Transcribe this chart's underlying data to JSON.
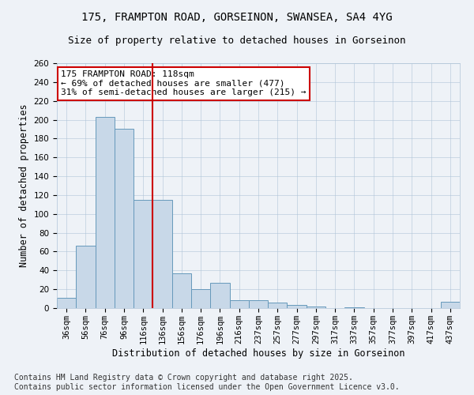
{
  "title_line1": "175, FRAMPTON ROAD, GORSEINON, SWANSEA, SA4 4YG",
  "title_line2": "Size of property relative to detached houses in Gorseinon",
  "xlabel": "Distribution of detached houses by size in Gorseinon",
  "ylabel": "Number of detached properties",
  "categories": [
    "36sqm",
    "56sqm",
    "76sqm",
    "96sqm",
    "116sqm",
    "136sqm",
    "156sqm",
    "176sqm",
    "196sqm",
    "216sqm",
    "237sqm",
    "257sqm",
    "277sqm",
    "297sqm",
    "317sqm",
    "337sqm",
    "357sqm",
    "377sqm",
    "397sqm",
    "417sqm",
    "437sqm"
  ],
  "values": [
    11,
    66,
    203,
    190,
    115,
    115,
    37,
    20,
    27,
    8,
    8,
    6,
    3,
    2,
    0,
    1,
    0,
    0,
    0,
    0,
    7
  ],
  "bar_color": "#c8d8e8",
  "bar_edge_color": "#6699bb",
  "property_line_x": 4.5,
  "property_line_color": "#cc0000",
  "annotation_text": "175 FRAMPTON ROAD: 118sqm\n← 69% of detached houses are smaller (477)\n31% of semi-detached houses are larger (215) →",
  "annotation_box_color": "#ffffff",
  "annotation_box_edge_color": "#cc0000",
  "ylim": [
    0,
    260
  ],
  "yticks": [
    0,
    20,
    40,
    60,
    80,
    100,
    120,
    140,
    160,
    180,
    200,
    220,
    240,
    260
  ],
  "background_color": "#eef2f7",
  "grid_color": "#b0c4d8",
  "footer_line1": "Contains HM Land Registry data © Crown copyright and database right 2025.",
  "footer_line2": "Contains public sector information licensed under the Open Government Licence v3.0.",
  "title_fontsize": 10,
  "subtitle_fontsize": 9,
  "axis_label_fontsize": 8.5,
  "tick_fontsize": 7.5,
  "annotation_fontsize": 8,
  "footer_fontsize": 7
}
